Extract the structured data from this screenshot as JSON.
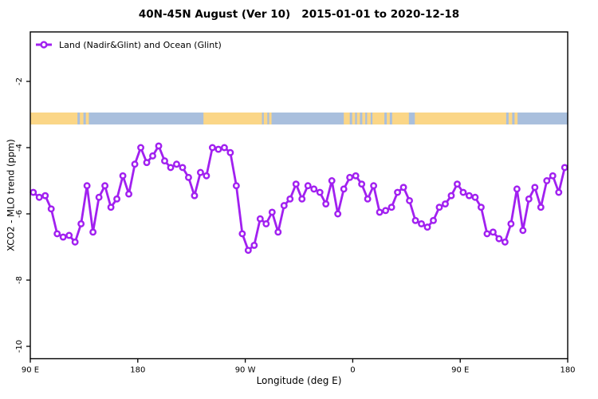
{
  "title": "40N-45N August (Ver 10)   2015-01-01 to 2020-12-18",
  "legend": {
    "label": "Land (Nadir&Glint) and Ocean (Glint)"
  },
  "axes": {
    "xlabel": "Longitude (deg E)",
    "ylabel": "XCO2 - MLO trend (ppm)",
    "x_ticks": [
      {
        "lon": 90,
        "label": "90 E"
      },
      {
        "lon": 180,
        "label": "180"
      },
      {
        "lon": 270,
        "label": "90 W"
      },
      {
        "lon": 360,
        "label": "0"
      },
      {
        "lon": 450,
        "label": "90 E"
      },
      {
        "lon": 540,
        "label": "180"
      }
    ],
    "y_ticks": [
      -2,
      -4,
      -6,
      -8,
      -10
    ],
    "xlim": [
      90,
      540
    ],
    "ylim": [
      -10.35,
      -0.5
    ]
  },
  "colors": {
    "series": "#A120F0",
    "land": "#FBD687",
    "ocean": "#A9BFDD",
    "frame": "#000000"
  },
  "chart_data": {
    "type": "line",
    "title": "40N-45N August (Ver 10)   2015-01-01 to 2020-12-18",
    "xlabel": "Longitude (deg E)",
    "ylabel": "XCO2 - MLO trend (ppm)",
    "xlim": [
      90,
      540
    ],
    "ylim": [
      -10.35,
      -0.5
    ],
    "grid": false,
    "legend_position": "top-left",
    "series": [
      {
        "name": "Land (Nadir&Glint) and Ocean (Glint)",
        "marker": "open-circle",
        "x": [
          92.5,
          97.5,
          102.5,
          107.5,
          112.5,
          117.5,
          122.5,
          127.5,
          132.5,
          137.5,
          142.5,
          147.5,
          152.5,
          157.5,
          162.5,
          167.5,
          172.5,
          177.5,
          182.5,
          187.5,
          192.5,
          197.5,
          202.5,
          207.5,
          212.5,
          217.5,
          222.5,
          227.5,
          232.5,
          237.5,
          242.5,
          247.5,
          252.5,
          257.5,
          262.5,
          267.5,
          272.5,
          277.5,
          282.5,
          287.5,
          292.5,
          297.5,
          302.5,
          307.5,
          312.5,
          317.5,
          322.5,
          327.5,
          332.5,
          337.5,
          342.5,
          347.5,
          352.5,
          357.5,
          362.5,
          367.5,
          372.5,
          377.5,
          382.5,
          387.5,
          392.5,
          397.5,
          402.5,
          407.5,
          412.5,
          417.5,
          422.5,
          427.5,
          432.5,
          437.5,
          442.5,
          447.5,
          452.5,
          457.5,
          462.5,
          467.5,
          472.5,
          477.5,
          482.5,
          487.5,
          492.5,
          497.5,
          502.5,
          507.5,
          512.5,
          517.5,
          522.5,
          527.5,
          532.5,
          537.5
        ],
        "y": [
          -5.35,
          -5.5,
          -5.45,
          -5.85,
          -6.6,
          -6.7,
          -6.65,
          -6.85,
          -6.3,
          -5.15,
          -6.55,
          -5.5,
          -5.15,
          -5.8,
          -5.55,
          -4.85,
          -5.4,
          -4.5,
          -4.0,
          -4.45,
          -4.25,
          -3.95,
          -4.4,
          -4.6,
          -4.5,
          -4.6,
          -4.9,
          -5.45,
          -4.75,
          -4.85,
          -4.0,
          -4.05,
          -4.0,
          -4.15,
          -5.15,
          -6.6,
          -7.1,
          -6.95,
          -6.15,
          -6.3,
          -5.95,
          -6.55,
          -5.75,
          -5.55,
          -5.1,
          -5.55,
          -5.15,
          -5.25,
          -5.35,
          -5.7,
          -5.0,
          -6.0,
          -5.25,
          -4.9,
          -4.85,
          -5.1,
          -5.55,
          -5.15,
          -5.95,
          -5.9,
          -5.8,
          -5.35,
          -5.2,
          -5.6,
          -6.2,
          -6.3,
          -6.4,
          -6.2,
          -5.8,
          -5.7,
          -5.45,
          -5.1,
          -5.35,
          -5.45,
          -5.5,
          -5.8,
          -6.6,
          -6.55,
          -6.75,
          -6.85,
          -6.3,
          -5.25,
          -6.5,
          -5.55,
          -5.2,
          -5.8,
          -5.0,
          -4.85,
          -5.35,
          -4.6
        ]
      }
    ],
    "map_band": {
      "description": "land/ocean strip across plot",
      "y_top_value": -2.94,
      "y_bottom_value": -3.3,
      "land_segments": [
        [
          90,
          129.5
        ],
        [
          131.5,
          134.5
        ],
        [
          136.5,
          139
        ],
        [
          235,
          284
        ],
        [
          285.5,
          288.5
        ],
        [
          290,
          292
        ],
        [
          352.5,
          357.5
        ],
        [
          359.5,
          362
        ],
        [
          363.5,
          366
        ],
        [
          368,
          370.5
        ],
        [
          372,
          375
        ],
        [
          376.5,
          386.5
        ],
        [
          388.5,
          391
        ],
        [
          393,
          407
        ],
        [
          412,
          488.5
        ],
        [
          490.5,
          493.5
        ],
        [
          495.5,
          498
        ]
      ]
    }
  }
}
